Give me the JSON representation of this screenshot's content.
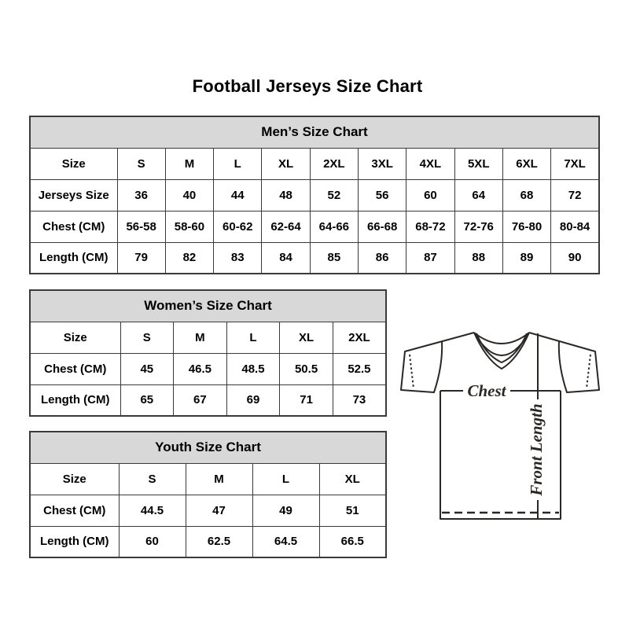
{
  "page": {
    "title": "Football Jerseys Size Chart"
  },
  "tables": {
    "men": {
      "title": "Men’s Size Chart",
      "rows": [
        [
          "Size",
          "S",
          "M",
          "L",
          "XL",
          "2XL",
          "3XL",
          "4XL",
          "5XL",
          "6XL",
          "7XL"
        ],
        [
          "Jerseys Size",
          "36",
          "40",
          "44",
          "48",
          "52",
          "56",
          "60",
          "64",
          "68",
          "72"
        ],
        [
          "Chest (CM)",
          "56-58",
          "58-60",
          "60-62",
          "62-64",
          "64-66",
          "66-68",
          "68-72",
          "72-76",
          "76-80",
          "80-84"
        ],
        [
          "Length (CM)",
          "79",
          "82",
          "83",
          "84",
          "85",
          "86",
          "87",
          "88",
          "89",
          "90"
        ]
      ]
    },
    "women": {
      "title": "Women’s Size Chart",
      "rows": [
        [
          "Size",
          "S",
          "M",
          "L",
          "XL",
          "2XL"
        ],
        [
          "Chest (CM)",
          "45",
          "46.5",
          "48.5",
          "50.5",
          "52.5"
        ],
        [
          "Length (CM)",
          "65",
          "67",
          "69",
          "71",
          "73"
        ]
      ]
    },
    "youth": {
      "title": "Youth Size Chart",
      "rows": [
        [
          "Size",
          "S",
          "M",
          "L",
          "XL"
        ],
        [
          "Chest (CM)",
          "44.5",
          "47",
          "49",
          "51"
        ],
        [
          "Length (CM)",
          "60",
          "62.5",
          "64.5",
          "66.5"
        ]
      ]
    }
  },
  "diagram": {
    "chest_label": "Chest",
    "front_length_label": "Front Length"
  },
  "colors": {
    "background": "#ffffff",
    "table_border": "#3a3a3a",
    "table_header_bg": "#d8d8d8",
    "text": "#000000",
    "diagram_line": "#2b2724"
  }
}
